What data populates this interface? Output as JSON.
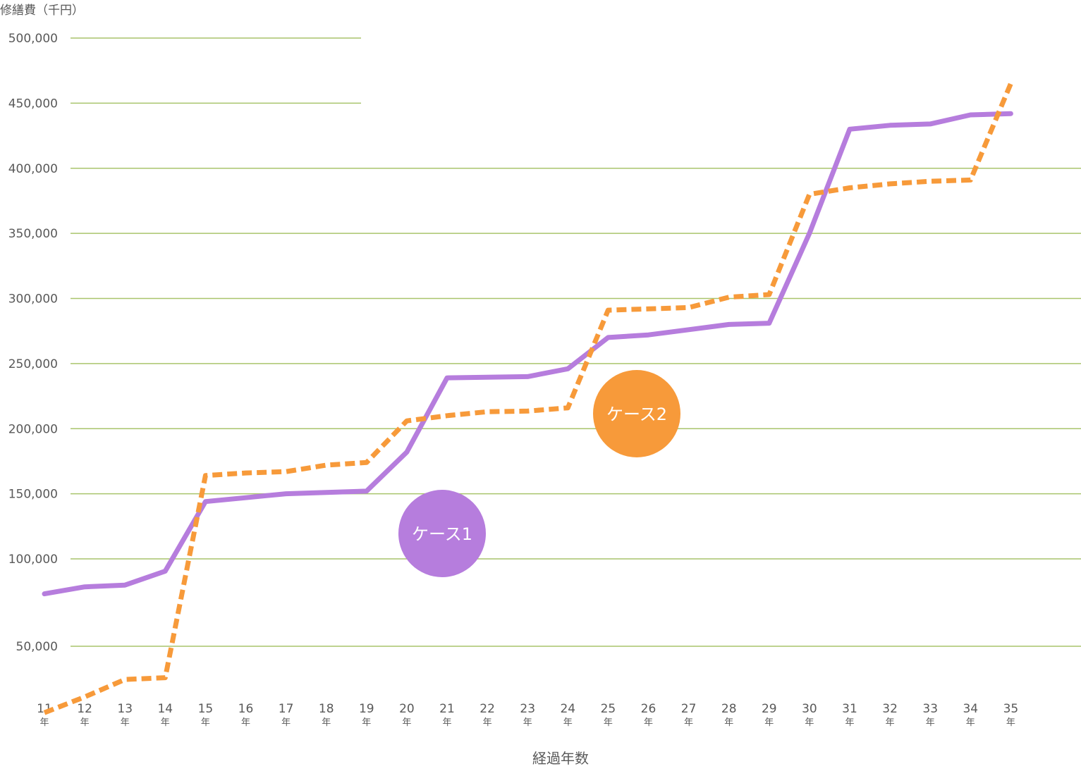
{
  "chart_data": {
    "type": "line",
    "ylabel": "修繕費（千円）",
    "xlabel": "経過年数",
    "x_unit": "年",
    "categories": [
      "11",
      "12",
      "13",
      "14",
      "15",
      "16",
      "17",
      "18",
      "19",
      "20",
      "21",
      "22",
      "23",
      "24",
      "25",
      "26",
      "27",
      "28",
      "29",
      "30",
      "31",
      "32",
      "33",
      "34",
      "35"
    ],
    "yticks": [
      {
        "value": 500000,
        "label": "500,000"
      },
      {
        "value": 450000,
        "label": "450,000"
      },
      {
        "value": 400000,
        "label": "400,000"
      },
      {
        "value": 350000,
        "label": "350,000"
      },
      {
        "value": 300000,
        "label": "300,000"
      },
      {
        "value": 250000,
        "label": "250,000"
      },
      {
        "value": 200000,
        "label": "200,000"
      },
      {
        "value": 150000,
        "label": "150,000"
      },
      {
        "value": 100000,
        "label": "100,000"
      },
      {
        "value": 50000,
        "label": "50,000"
      }
    ],
    "grid": true,
    "series": [
      {
        "name": "ケース1",
        "style": "solid",
        "color": "#b67ddd",
        "values": [
          80000,
          84000,
          85000,
          93000,
          144000,
          147000,
          150000,
          151000,
          152000,
          182000,
          239000,
          239500,
          240000,
          246000,
          270000,
          272000,
          276000,
          280000,
          281000,
          350000,
          430000,
          433000,
          434000,
          441000,
          442000
        ]
      },
      {
        "name": "ケース2",
        "style": "dashed",
        "color": "#f79a3a",
        "values": [
          12000,
          21000,
          31000,
          32000,
          164000,
          166000,
          167000,
          172000,
          174000,
          206000,
          210000,
          213000,
          213500,
          216000,
          291000,
          292000,
          293000,
          301000,
          303000,
          380000,
          385000,
          388000,
          390000,
          391000,
          465000
        ]
      }
    ]
  }
}
